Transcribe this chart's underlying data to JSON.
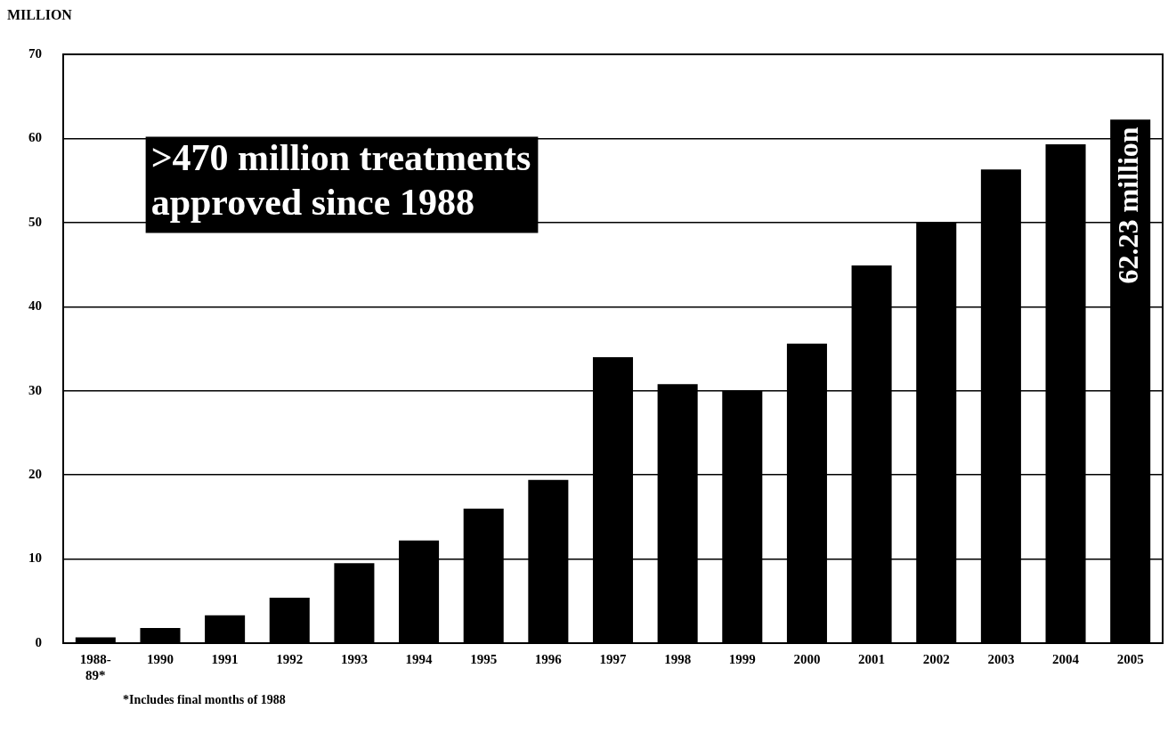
{
  "chart_data": {
    "type": "bar",
    "ylabel": "MILLION",
    "categories": [
      "1988-89*",
      "1990",
      "1991",
      "1992",
      "1993",
      "1994",
      "1995",
      "1996",
      "1997",
      "1998",
      "1999",
      "2000",
      "2001",
      "2002",
      "2003",
      "2004",
      "2005"
    ],
    "values": [
      0.7,
      1.8,
      3.3,
      5.4,
      9.5,
      12.2,
      16.0,
      19.4,
      34.0,
      30.8,
      30.0,
      35.6,
      44.9,
      50.0,
      56.3,
      59.3,
      62.23
    ],
    "value_labels": [
      null,
      null,
      null,
      null,
      null,
      null,
      null,
      null,
      null,
      null,
      null,
      null,
      null,
      null,
      null,
      null,
      "62.23 million"
    ],
    "color": "#000000",
    "ylim": [
      0,
      70
    ],
    "yticks": [
      0,
      10,
      20,
      30,
      40,
      50,
      60,
      70
    ],
    "grid": "y",
    "legend": false,
    "annotations": [
      ">470 million treatments approved since 1988",
      "*Includes final months of 1988"
    ]
  }
}
